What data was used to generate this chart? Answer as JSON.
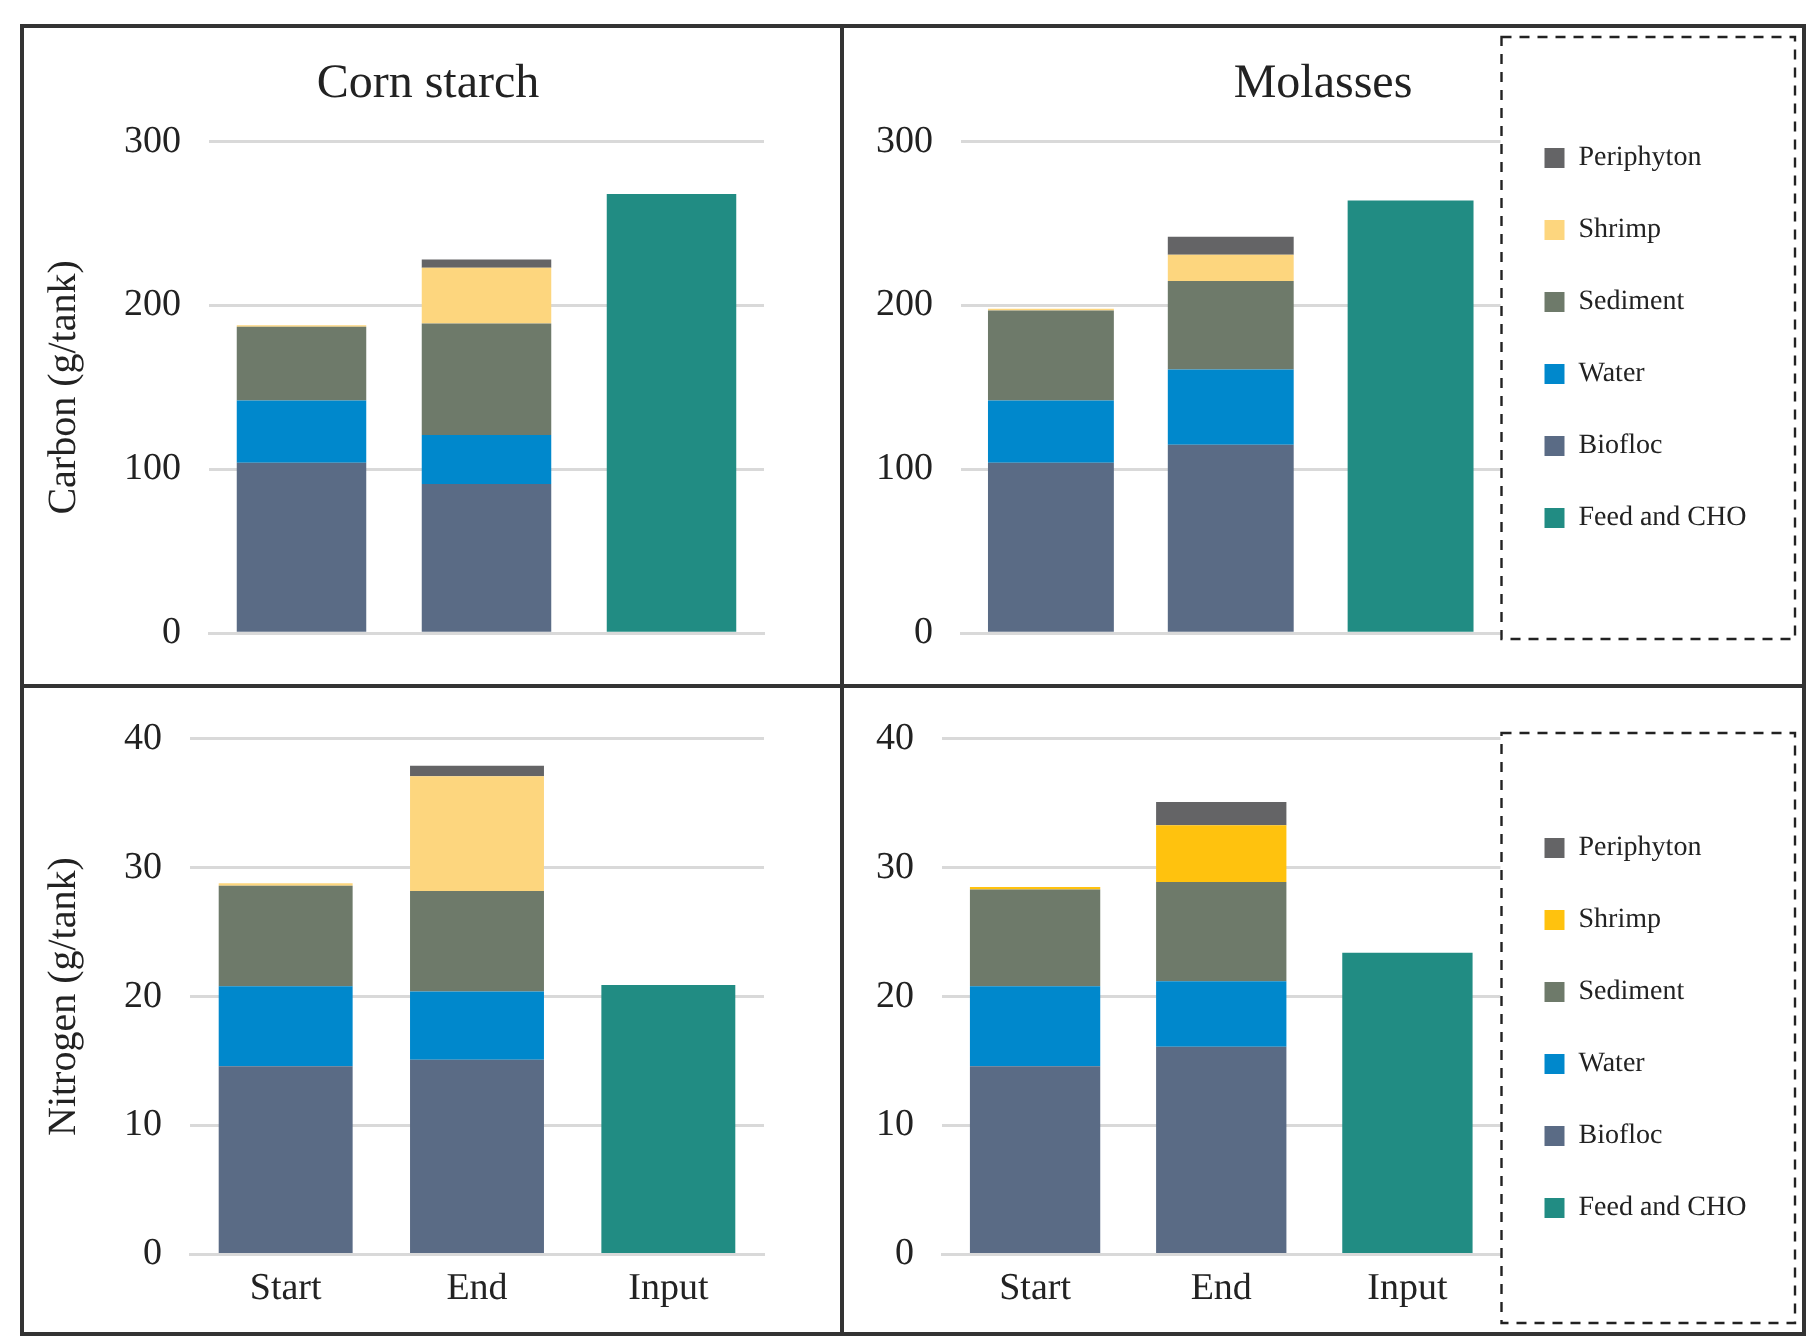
{
  "chart_data": [
    {
      "type": "bar",
      "title": "Corn starch",
      "ylabel": "Carbon (g/tank)",
      "stacked": true,
      "categories": [
        null,
        null,
        null
      ],
      "ylim": [
        0,
        300
      ],
      "yticks": [
        0,
        100,
        200,
        300
      ],
      "grid": "y",
      "legend": false,
      "tick_labels": "y",
      "series": [
        {
          "color": "#218c83",
          "values": [
            null,
            null,
            268
          ]
        },
        {
          "color": "#5a6b85",
          "values": [
            104,
            91,
            null
          ]
        },
        {
          "color": "#0088cc",
          "values": [
            38,
            30,
            null
          ]
        },
        {
          "color": "#6e7a6a",
          "values": [
            45,
            68,
            null
          ]
        },
        {
          "color": "#fdd67e",
          "values": [
            1,
            34,
            null
          ]
        },
        {
          "color": "#646466",
          "values": [
            0,
            5,
            null
          ]
        }
      ]
    },
    {
      "type": "bar",
      "title": "Molasses",
      "stacked": true,
      "categories": [
        null,
        null,
        null
      ],
      "ylim": [
        0,
        300
      ],
      "yticks": [
        0,
        100,
        200,
        300
      ],
      "grid": "y",
      "legend": "right",
      "tick_labels": "y",
      "series": [
        {
          "name": "Feed and CHO",
          "color": "#218c83",
          "values": [
            null,
            null,
            264
          ]
        },
        {
          "name": "Biofloc",
          "color": "#5a6b85",
          "values": [
            104,
            115,
            null
          ]
        },
        {
          "name": "Water",
          "color": "#0088cc",
          "values": [
            38,
            46,
            null
          ]
        },
        {
          "name": "Sediment",
          "color": "#6e7a6a",
          "values": [
            55,
            54,
            null
          ]
        },
        {
          "name": "Shrimp",
          "color": "#fdd67e",
          "values": [
            1,
            16,
            null
          ]
        },
        {
          "name": "Periphyton",
          "color": "#646466",
          "values": [
            0,
            11,
            null
          ]
        }
      ]
    },
    {
      "type": "bar",
      "ylabel": "Nitrogen (g/tank)",
      "stacked": true,
      "categories": [
        "Start",
        "End",
        "Input"
      ],
      "ylim": [
        0,
        40
      ],
      "yticks": [
        0,
        10,
        20,
        30,
        40
      ],
      "grid": "y",
      "legend": false,
      "series": [
        {
          "color": "#218c83",
          "values": [
            null,
            null,
            20.9
          ]
        },
        {
          "color": "#5a6b85",
          "values": [
            14.6,
            15.1,
            null
          ]
        },
        {
          "color": "#0088cc",
          "values": [
            6.2,
            5.3,
            null
          ]
        },
        {
          "color": "#6e7a6a",
          "values": [
            7.8,
            7.8,
            null
          ]
        },
        {
          "color": "#fdd67e",
          "values": [
            0.2,
            8.9,
            null
          ]
        },
        {
          "color": "#646466",
          "values": [
            0,
            0.8,
            null
          ]
        }
      ]
    },
    {
      "type": "bar",
      "stacked": true,
      "categories": [
        "Start",
        "End",
        "Input"
      ],
      "ylim": [
        0,
        40
      ],
      "yticks": [
        0,
        10,
        20,
        30,
        40
      ],
      "grid": "y",
      "legend": "right",
      "series": [
        {
          "name": "Feed and CHO",
          "color": "#218c83",
          "values": [
            null,
            null,
            23.4
          ]
        },
        {
          "name": "Biofloc",
          "color": "#5a6b85",
          "values": [
            14.6,
            16.1,
            null
          ]
        },
        {
          "name": "Water",
          "color": "#0088cc",
          "values": [
            6.2,
            5.1,
            null
          ]
        },
        {
          "name": "Sediment",
          "color": "#6e7a6a",
          "values": [
            7.5,
            7.7,
            null
          ]
        },
        {
          "name": "Shrimp",
          "color": "#ffc20e",
          "values": [
            0.2,
            4.4,
            null
          ]
        },
        {
          "name": "Periphyton",
          "color": "#646466",
          "values": [
            0,
            1.8,
            null
          ]
        }
      ]
    }
  ]
}
